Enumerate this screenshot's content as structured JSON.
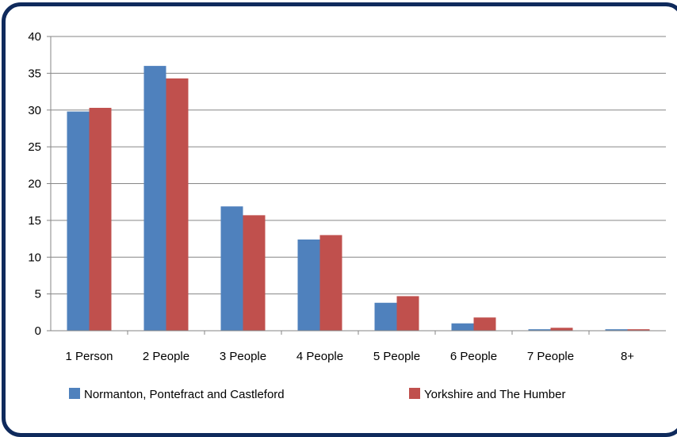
{
  "chart_data": {
    "type": "bar",
    "categories": [
      "1 Person",
      "2 People",
      "3 People",
      "4 People",
      "5 People",
      "6 People",
      "7 People",
      "8+"
    ],
    "series": [
      {
        "name": "Normanton, Pontefract and Castleford",
        "color": "#4f81bd",
        "values": [
          29.8,
          36.0,
          16.9,
          12.4,
          3.8,
          1.0,
          0.2,
          0.2
        ]
      },
      {
        "name": "Yorkshire and The Humber",
        "color": "#c0504d",
        "values": [
          30.3,
          34.3,
          15.7,
          13.0,
          4.7,
          1.8,
          0.4,
          0.2
        ]
      }
    ],
    "ylim": [
      0,
      40
    ],
    "yticks": [
      0,
      5,
      10,
      15,
      20,
      25,
      30,
      35,
      40
    ],
    "grid": true,
    "legend": "bottom"
  }
}
